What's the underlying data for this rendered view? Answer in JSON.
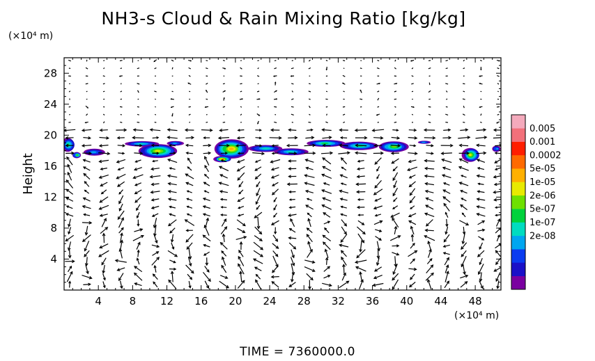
{
  "chart_data": {
    "type": "heatmap",
    "title": "NH3-s Cloud & Rain Mixing Ratio [kg/kg]",
    "ylabel": "Height",
    "x_unit": "(×10⁴ m)",
    "y_unit": "(×10⁴ m)",
    "xlim": [
      0,
      51
    ],
    "ylim": [
      0,
      30
    ],
    "x_ticks": [
      "4",
      "8",
      "12",
      "16",
      "20",
      "24",
      "28",
      "32",
      "36",
      "40",
      "44",
      "48"
    ],
    "y_ticks": [
      "4",
      "8",
      "12",
      "16",
      "20",
      "24",
      "28"
    ],
    "grid": false,
    "legend_placement": "right",
    "colorbar_labels": [
      "0.005",
      "0.001",
      "0.0002",
      "5e-05",
      "1e-05",
      "2e-06",
      "5e-07",
      "1e-07",
      "2e-08"
    ],
    "colorbar_colors": [
      "#7a00a0",
      "#1a10c8",
      "#0a3cf0",
      "#00a6f0",
      "#00dcc0",
      "#00d23c",
      "#6ee000",
      "#e8ea00",
      "#ffb000",
      "#ff6a00",
      "#ff1e00",
      "#f2707a",
      "#f4aabc"
    ],
    "clouds": [
      {
        "x": 0.5,
        "y": 18.7,
        "w": 1.5,
        "h": 1.8,
        "peak": 5
      },
      {
        "x": 1.5,
        "y": 17.4,
        "w": 1.0,
        "h": 0.8,
        "peak": 6
      },
      {
        "x": 3.5,
        "y": 17.8,
        "w": 2.5,
        "h": 0.9,
        "peak": 3
      },
      {
        "x": 9.0,
        "y": 18.9,
        "w": 4.0,
        "h": 0.7,
        "peak": 4
      },
      {
        "x": 11.0,
        "y": 18.0,
        "w": 4.5,
        "h": 1.8,
        "peak": 7
      },
      {
        "x": 13.0,
        "y": 18.9,
        "w": 2.0,
        "h": 0.6,
        "peak": 3
      },
      {
        "x": 19.5,
        "y": 18.2,
        "w": 4.0,
        "h": 2.5,
        "peak": 8
      },
      {
        "x": 18.5,
        "y": 16.9,
        "w": 2.0,
        "h": 0.8,
        "peak": 9
      },
      {
        "x": 23.5,
        "y": 18.3,
        "w": 4.0,
        "h": 0.9,
        "peak": 4
      },
      {
        "x": 26.5,
        "y": 17.9,
        "w": 4.0,
        "h": 0.9,
        "peak": 4
      },
      {
        "x": 30.5,
        "y": 18.9,
        "w": 4.5,
        "h": 0.9,
        "peak": 5
      },
      {
        "x": 34.5,
        "y": 18.6,
        "w": 4.5,
        "h": 1.1,
        "peak": 5
      },
      {
        "x": 38.5,
        "y": 18.5,
        "w": 3.5,
        "h": 1.4,
        "peak": 6
      },
      {
        "x": 42.0,
        "y": 19.1,
        "w": 1.5,
        "h": 0.4,
        "peak": 3
      },
      {
        "x": 47.5,
        "y": 17.5,
        "w": 2.0,
        "h": 1.8,
        "peak": 7
      },
      {
        "x": 50.5,
        "y": 18.2,
        "w": 1.0,
        "h": 0.8,
        "peak": 3
      }
    ]
  },
  "time_label": "TIME  =  7360000.0"
}
